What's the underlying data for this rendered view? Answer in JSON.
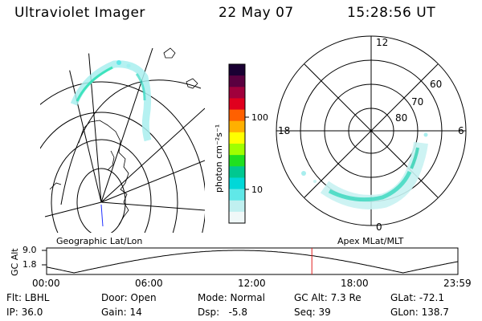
{
  "header": {
    "instrument": "Ultraviolet Imager",
    "date": "22 May 07",
    "time": "15:28:56 UT"
  },
  "geo_panel": {
    "title": "Geographic Lat/Lon"
  },
  "colorbar": {
    "unit_label": "photon cm⁻²s⁻¹",
    "ticks": [
      "100",
      "10"
    ],
    "colors": [
      "#1a0033",
      "#5a0040",
      "#a0003c",
      "#e0001e",
      "#ff6000",
      "#ffb000",
      "#ffff00",
      "#a0ff00",
      "#20e020",
      "#00c890",
      "#00d8d8",
      "#60e8e8",
      "#c0f0f0",
      "#f0f8f8"
    ]
  },
  "polar_panel": {
    "title": "Apex MLat/MLT",
    "mlt_labels": {
      "top": "12",
      "bottom": "0",
      "left": "18",
      "right": "6"
    },
    "lat_labels": [
      "60",
      "70",
      "80"
    ]
  },
  "altitude_plot": {
    "ylabel": "GC Alt",
    "yticks": [
      "9.0",
      "1.8"
    ],
    "xticks": [
      "00:00",
      "06:00",
      "12:00",
      "18:00",
      "23:59"
    ],
    "current_time_hours": 15.48
  },
  "info": {
    "filter": "Flt: LBHL",
    "ip": "IP: 36.0",
    "door": "Door: Open",
    "gain": "Gain: 14",
    "mode": "Mode: Normal",
    "dsp": "Dsp:   -5.8",
    "gc_alt": "GC Alt: 7.3 Re",
    "seq": "Seq: 39",
    "glat": "GLat: -72.1",
    "glon": "GLon: 138.7"
  }
}
